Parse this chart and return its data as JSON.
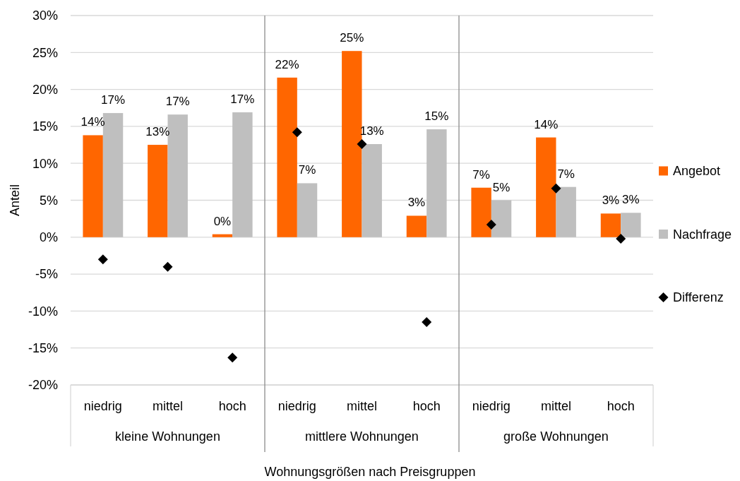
{
  "chart_data": {
    "type": "bar",
    "xlabel": "Wohnungsgrößen nach Preisgruppen",
    "ylabel": "Anteil",
    "categories": [
      "niedrig",
      "mittel",
      "hoch",
      "niedrig",
      "mittel",
      "hoch",
      "niedrig",
      "mittel",
      "hoch"
    ],
    "annotations": [
      "kleine Wohnungen",
      "mittlere Wohnungen",
      "große Wohnungen"
    ],
    "series": [
      {
        "name": "Angebot",
        "color": "#ff6600",
        "values": [
          13.8,
          12.5,
          0.4,
          21.6,
          25.2,
          2.9,
          6.7,
          13.5,
          3.2
        ],
        "value_labels": [
          "14%",
          "13%",
          "0%",
          "22%",
          "25%",
          "3%",
          "7%",
          "14%",
          "3%"
        ]
      },
      {
        "name": "Nachfrage",
        "color": "#bfbfbf",
        "values": [
          16.8,
          16.6,
          16.9,
          7.3,
          12.6,
          14.6,
          5.0,
          6.8,
          3.3
        ],
        "value_labels": [
          "17%",
          "17%",
          "17%",
          "7%",
          "13%",
          "15%",
          "5%",
          "7%",
          "3%"
        ]
      },
      {
        "name": "Differenz",
        "type": "scatter",
        "marker": "diamond",
        "color": "#000000",
        "values": [
          -3.0,
          -4.0,
          -16.3,
          14.2,
          12.6,
          -11.5,
          1.7,
          6.6,
          -0.2
        ]
      }
    ],
    "ylim": [
      -20,
      30
    ],
    "yticks": [
      {
        "value": -20,
        "label": "-20%"
      },
      {
        "value": -15,
        "label": "-15%"
      },
      {
        "value": -10,
        "label": "-10%"
      },
      {
        "value": -5,
        "label": "-5%"
      },
      {
        "value": 0,
        "label": "0%"
      },
      {
        "value": 5,
        "label": "5%"
      },
      {
        "value": 10,
        "label": "10%"
      },
      {
        "value": 15,
        "label": "15%"
      },
      {
        "value": 20,
        "label": "20%"
      },
      {
        "value": 25,
        "label": "25%"
      },
      {
        "value": 30,
        "label": "30%"
      }
    ],
    "grid": "y",
    "legend": "right"
  }
}
